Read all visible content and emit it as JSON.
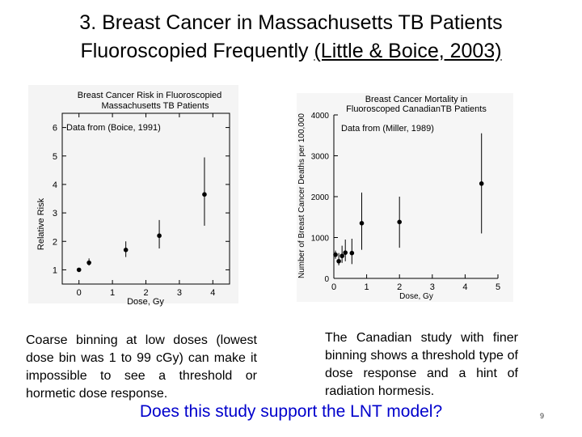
{
  "title": {
    "line1": "3. Breast Cancer in Massachusetts TB Patients",
    "line2_plain": "Fluoroscopied Frequently ",
    "line2_ref": "(Little & Boice, 2003)"
  },
  "chart_data": [
    {
      "type": "scatter",
      "title_line1": "Breast Cancer Risk in Fluoroscopied",
      "title_line2": "Massachusetts TB Patients",
      "annotation": "Data from (Boice, 1991)",
      "xlabel": "Dose, Gy",
      "ylabel": "Relative Risk",
      "xlim": [
        -0.5,
        4.5
      ],
      "ylim": [
        0.5,
        6.5
      ],
      "xticks": [
        0,
        1,
        2,
        3,
        4
      ],
      "yticks": [
        1,
        2,
        3,
        4,
        5,
        6
      ],
      "points": [
        {
          "x": 0.0,
          "y": 1.0,
          "low": 1.0,
          "high": 1.0
        },
        {
          "x": 0.3,
          "y": 1.25,
          "low": 1.15,
          "high": 1.4
        },
        {
          "x": 1.4,
          "y": 1.7,
          "low": 1.45,
          "high": 2.0
        },
        {
          "x": 2.4,
          "y": 2.2,
          "low": 1.75,
          "high": 2.75
        },
        {
          "x": 3.75,
          "y": 3.65,
          "low": 2.55,
          "high": 4.95
        }
      ]
    },
    {
      "type": "scatter",
      "title_line1": "Breast Cancer Mortality in",
      "title_line2": "Fluoroscoped CanadianTB Patients",
      "annotation": "Data from (Miller, 1989)",
      "xlabel": "Dose, Gy",
      "ylabel": "Number of Breast Cancer Deaths per 100,000",
      "xlim": [
        0,
        5
      ],
      "ylim": [
        0,
        4000
      ],
      "xticks": [
        0,
        1,
        2,
        3,
        4,
        5
      ],
      "yticks": [
        0,
        1000,
        2000,
        3000,
        4000
      ],
      "points": [
        {
          "x": 0.05,
          "y": 580,
          "low": 480,
          "high": 680
        },
        {
          "x": 0.15,
          "y": 420,
          "low": 320,
          "high": 620
        },
        {
          "x": 0.25,
          "y": 550,
          "low": 380,
          "high": 800
        },
        {
          "x": 0.35,
          "y": 630,
          "low": 420,
          "high": 950
        },
        {
          "x": 0.55,
          "y": 620,
          "low": 350,
          "high": 970
        },
        {
          "x": 0.85,
          "y": 1350,
          "low": 700,
          "high": 2100
        },
        {
          "x": 2.0,
          "y": 1380,
          "low": 750,
          "high": 2000
        },
        {
          "x": 4.5,
          "y": 2320,
          "low": 1100,
          "high": 3550
        }
      ]
    }
  ],
  "left_text": "Coarse binning at low doses (lowest dose bin was 1 to 99 cGy) can make it impossible to see a threshold or hormetic dose response.",
  "right_text": "The Canadian study with finer binning shows a threshold type of dose response and a hint of radiation hormesis.",
  "question": "Does this study support the LNT model?",
  "page_number": "9"
}
